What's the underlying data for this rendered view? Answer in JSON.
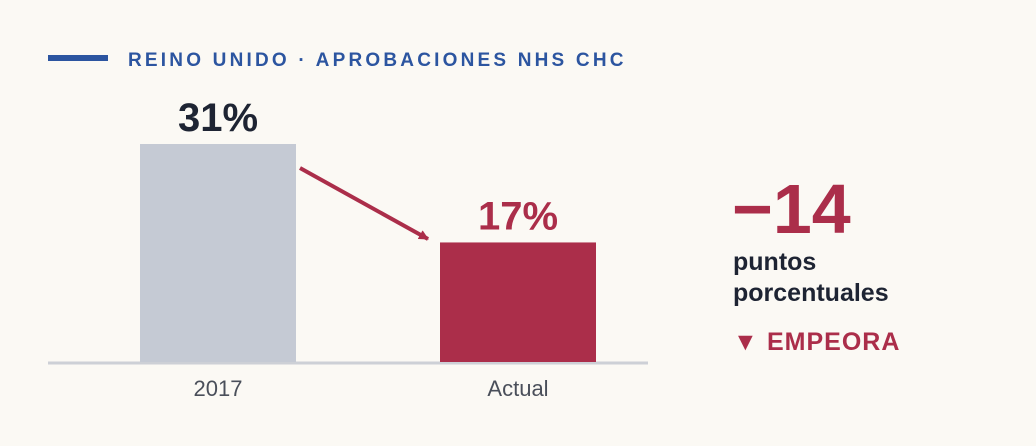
{
  "header": {
    "title": "REINO UNIDO · APROBACIONES NHS CHC"
  },
  "chart_data": {
    "type": "bar",
    "title": "REINO UNIDO · APROBACIONES NHS CHC",
    "categories": [
      "2017",
      "Actual"
    ],
    "values": [
      31,
      17
    ],
    "value_labels": [
      "31%",
      "17%"
    ],
    "unit": "%",
    "ylim": [
      0,
      31
    ],
    "grid": false,
    "legend": "none",
    "colors": [
      "#c5cad4",
      "#ab2e4a"
    ],
    "value_label_colors": [
      "#1e2433",
      "#ab2e4a"
    ],
    "annotations": [
      "arrow from 2017 to Actual"
    ]
  },
  "summary": {
    "delta": "−14",
    "unit_line1": "puntos",
    "unit_line2": "porcentuales",
    "status_icon": "down-triangle-icon",
    "status_glyph": "▼",
    "status": "EMPEORA"
  },
  "colors": {
    "background": "#fbf9f4",
    "accent_blue": "#2c55a0",
    "accent_red": "#ab2e4a",
    "bar_neutral": "#c5cad4",
    "baseline": "#cdd0d6",
    "text_dark": "#1e2433",
    "tick_text": "#4a4f5a"
  }
}
